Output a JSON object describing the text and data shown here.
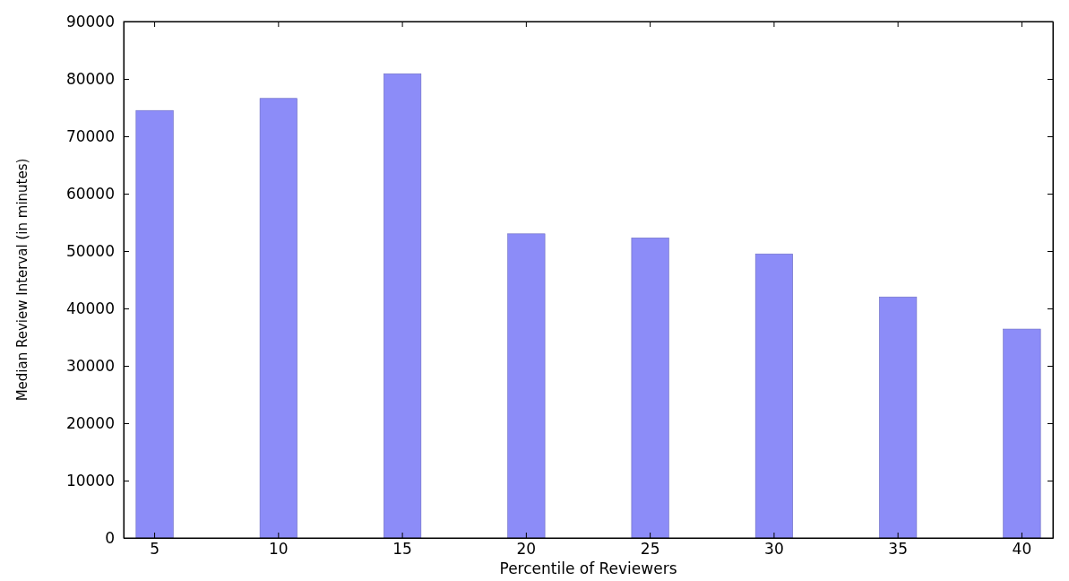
{
  "chart_data": {
    "type": "bar",
    "xlabel": "Percentile of Reviewers",
    "ylabel": "Median Review Interval (in minutes)",
    "categories": [
      "5",
      "10",
      "15",
      "20",
      "25",
      "30",
      "35",
      "40"
    ],
    "values": [
      74500,
      76600,
      80900,
      53000,
      52300,
      49500,
      42000,
      36400
    ],
    "color": "#8c8cf8",
    "ylim": [
      0,
      90000
    ],
    "yticks": [
      0,
      10000,
      20000,
      30000,
      40000,
      50000,
      60000,
      70000,
      80000,
      90000
    ],
    "grid": false
  }
}
